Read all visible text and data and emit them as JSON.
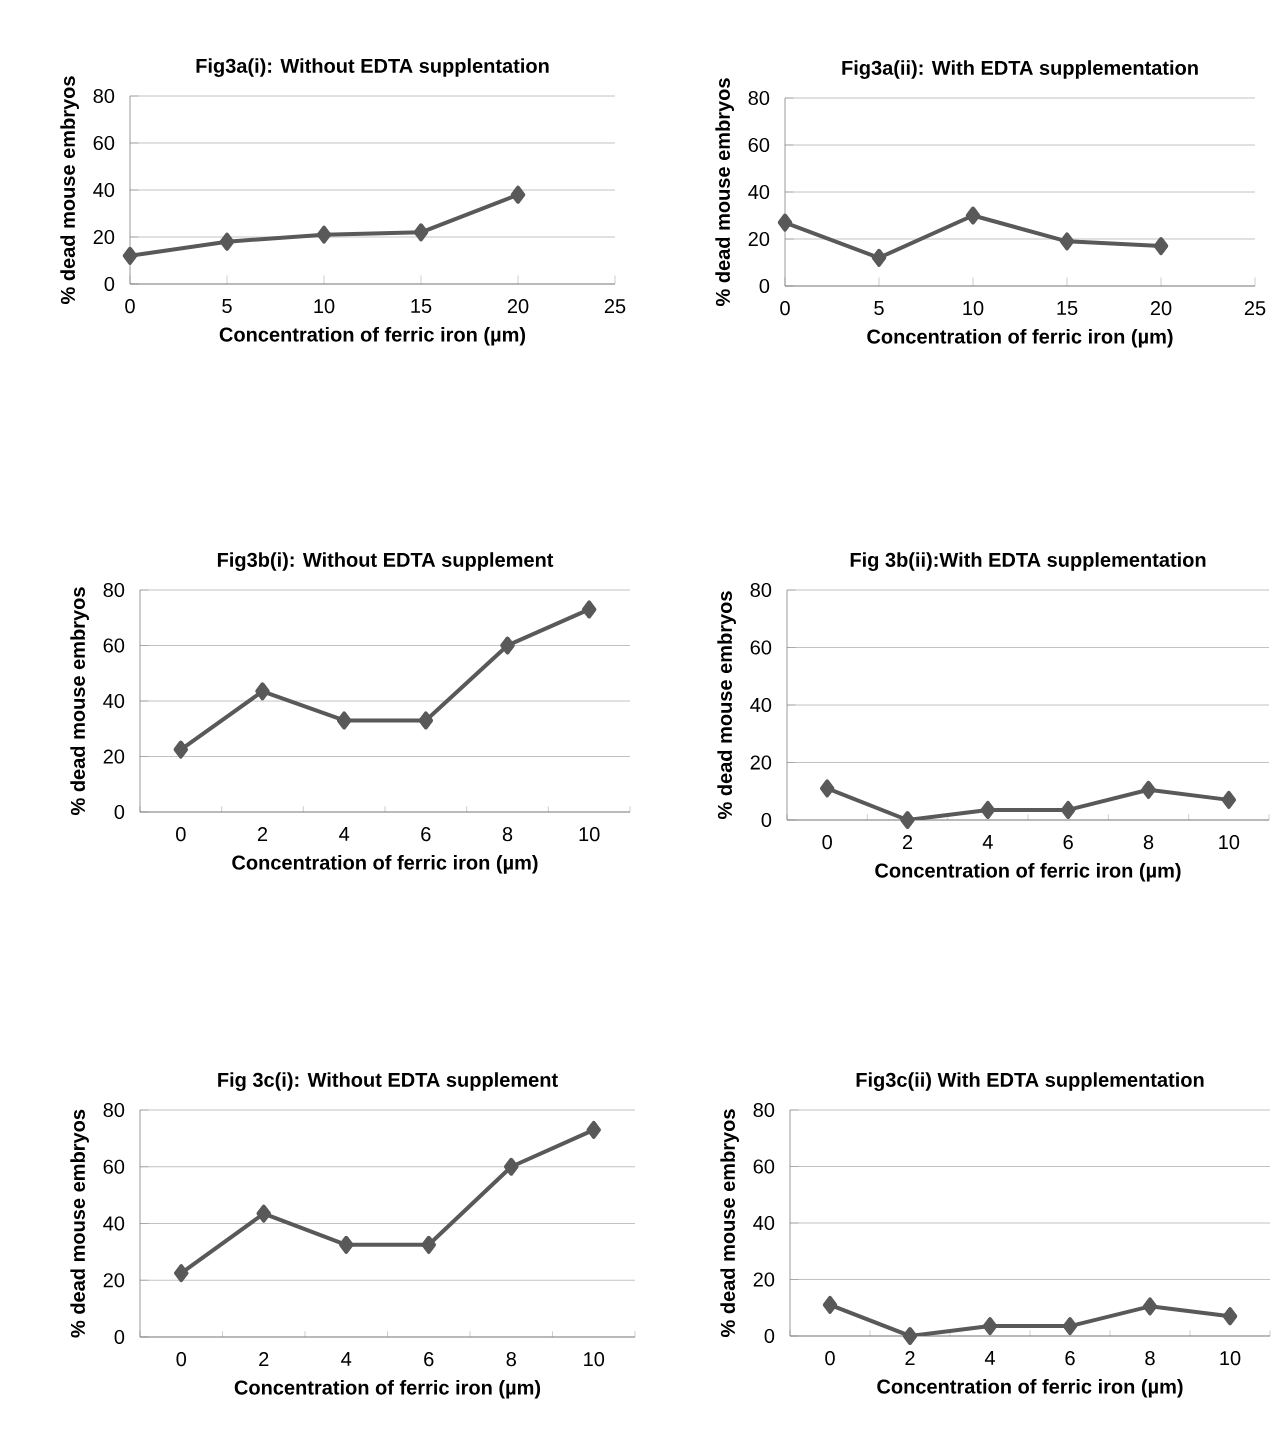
{
  "chart_data": [
    {
      "type": "line",
      "title": "Fig3a(i): Without EDTA supplentation",
      "xlabel": "Concentration of ferric iron (µm)",
      "ylabel": "% dead mouse embryos",
      "x": [
        0,
        5,
        10,
        15,
        20
      ],
      "values": [
        12,
        18,
        21,
        22,
        38
      ],
      "color": "#595959",
      "xlim": [
        0,
        25
      ],
      "xticks": [
        0,
        5,
        10,
        15,
        20,
        25
      ],
      "ylim": [
        0,
        80
      ],
      "yticks": [
        0,
        20,
        40,
        60,
        80
      ],
      "grid": "y",
      "marker": "diamond"
    },
    {
      "type": "line",
      "title": "Fig3a(ii): With EDTA supplementation",
      "xlabel": "Concentration of ferric iron (µm)",
      "ylabel": "% dead mouse embryos",
      "x": [
        0,
        5,
        10,
        15,
        20
      ],
      "values": [
        27,
        12,
        30,
        19,
        17
      ],
      "color": "#595959",
      "xlim": [
        0,
        25
      ],
      "xticks": [
        0,
        5,
        10,
        15,
        20,
        25
      ],
      "ylim": [
        0,
        80
      ],
      "yticks": [
        0,
        20,
        40,
        60,
        80
      ],
      "grid": "y",
      "marker": "diamond"
    },
    {
      "type": "line",
      "title": "Fig3b(i): Without EDTA supplement",
      "xlabel": "Concentration of ferric iron (µm)",
      "ylabel": "% dead mouse embryos",
      "categories": [
        "0",
        "2",
        "4",
        "6",
        "8",
        "10"
      ],
      "values": [
        22.5,
        43.5,
        33,
        33,
        60,
        73
      ],
      "color": "#595959",
      "ylim": [
        0,
        80
      ],
      "yticks": [
        0,
        20,
        40,
        60,
        80
      ],
      "grid": "y",
      "marker": "diamond"
    },
    {
      "type": "line",
      "title": "Fig 3b(ii):With EDTA supplementation",
      "xlabel": "Concentration of ferric iron (µm)",
      "ylabel": "% dead mouse embryos",
      "categories": [
        "0",
        "2",
        "4",
        "6",
        "8",
        "10"
      ],
      "values": [
        11,
        0,
        3.5,
        3.5,
        10.5,
        7
      ],
      "color": "#595959",
      "ylim": [
        0,
        80
      ],
      "yticks": [
        0,
        20,
        40,
        60,
        80
      ],
      "grid": "y",
      "marker": "diamond"
    },
    {
      "type": "line",
      "title": "Fig 3c(i): Without EDTA supplement",
      "xlabel": "Concentration of ferric iron (µm)",
      "ylabel": "% dead mouse embryos",
      "categories": [
        "0",
        "2",
        "4",
        "6",
        "8",
        "10"
      ],
      "values": [
        22.5,
        43.5,
        32.5,
        32.5,
        60,
        73
      ],
      "color": "#595959",
      "ylim": [
        0,
        80
      ],
      "yticks": [
        0,
        20,
        40,
        60,
        80
      ],
      "grid": "y",
      "marker": "diamond"
    },
    {
      "type": "line",
      "title": "Fig3c(ii) With EDTA supplementation",
      "xlabel": "Concentration of ferric iron (µm)",
      "ylabel": "% dead mouse embryos",
      "categories": [
        "0",
        "2",
        "4",
        "6",
        "8",
        "10"
      ],
      "values": [
        11,
        0,
        3.5,
        3.5,
        10.5,
        7
      ],
      "color": "#595959",
      "ylim": [
        0,
        80
      ],
      "yticks": [
        0,
        20,
        40,
        60,
        80
      ],
      "grid": "y",
      "marker": "diamond"
    }
  ]
}
